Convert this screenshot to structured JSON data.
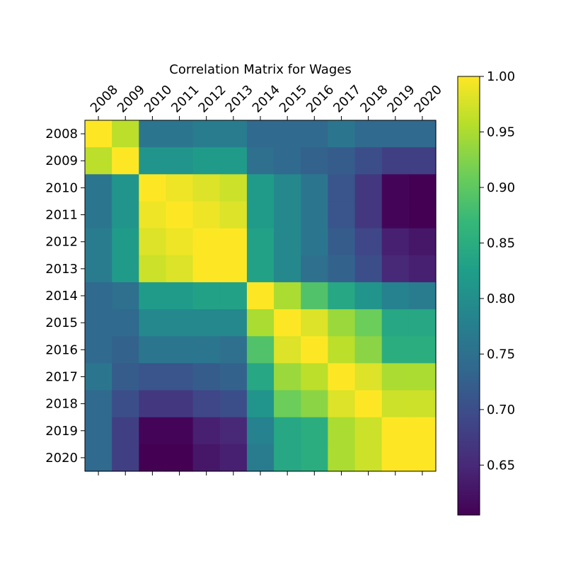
{
  "chart_data": {
    "type": "heatmap",
    "title": "Correlation Matrix for Wages",
    "xlabel": "",
    "ylabel": "",
    "x_categories": [
      "2008",
      "2009",
      "2010",
      "2011",
      "2012",
      "2013",
      "2014",
      "2015",
      "2016",
      "2017",
      "2018",
      "2019",
      "2020"
    ],
    "y_categories": [
      "2008",
      "2009",
      "2010",
      "2011",
      "2012",
      "2013",
      "2014",
      "2015",
      "2016",
      "2017",
      "2018",
      "2019",
      "2020"
    ],
    "values": [
      [
        1.0,
        0.96,
        0.76,
        0.76,
        0.77,
        0.77,
        0.74,
        0.74,
        0.74,
        0.76,
        0.74,
        0.74,
        0.74
      ],
      [
        0.96,
        1.0,
        0.81,
        0.81,
        0.82,
        0.82,
        0.75,
        0.74,
        0.73,
        0.72,
        0.7,
        0.68,
        0.68
      ],
      [
        0.76,
        0.81,
        1.0,
        0.99,
        0.98,
        0.97,
        0.82,
        0.79,
        0.76,
        0.71,
        0.67,
        0.61,
        0.6
      ],
      [
        0.76,
        0.81,
        0.99,
        1.0,
        0.99,
        0.98,
        0.82,
        0.79,
        0.76,
        0.71,
        0.67,
        0.61,
        0.6
      ],
      [
        0.77,
        0.82,
        0.98,
        0.99,
        1.0,
        1.0,
        0.83,
        0.79,
        0.76,
        0.72,
        0.69,
        0.64,
        0.63
      ],
      [
        0.77,
        0.82,
        0.97,
        0.98,
        1.0,
        1.0,
        0.83,
        0.79,
        0.75,
        0.73,
        0.7,
        0.65,
        0.64
      ],
      [
        0.74,
        0.75,
        0.82,
        0.82,
        0.83,
        0.83,
        1.0,
        0.95,
        0.89,
        0.84,
        0.81,
        0.78,
        0.77
      ],
      [
        0.74,
        0.74,
        0.79,
        0.79,
        0.79,
        0.79,
        0.95,
        1.0,
        0.98,
        0.94,
        0.91,
        0.84,
        0.84
      ],
      [
        0.74,
        0.73,
        0.76,
        0.76,
        0.76,
        0.75,
        0.89,
        0.98,
        1.0,
        0.96,
        0.93,
        0.85,
        0.85
      ],
      [
        0.76,
        0.72,
        0.71,
        0.71,
        0.72,
        0.73,
        0.84,
        0.94,
        0.96,
        1.0,
        0.98,
        0.95,
        0.95
      ],
      [
        0.74,
        0.7,
        0.67,
        0.67,
        0.69,
        0.7,
        0.81,
        0.91,
        0.93,
        0.98,
        1.0,
        0.97,
        0.97
      ],
      [
        0.74,
        0.68,
        0.61,
        0.61,
        0.64,
        0.65,
        0.78,
        0.84,
        0.85,
        0.95,
        0.97,
        1.0,
        1.0
      ],
      [
        0.74,
        0.68,
        0.6,
        0.6,
        0.63,
        0.64,
        0.77,
        0.84,
        0.85,
        0.95,
        0.97,
        1.0,
        1.0
      ]
    ],
    "colorscale": "viridis",
    "vmin": 0.605,
    "vmax": 1.0,
    "colorbar_ticks": [
      "0.65",
      "0.70",
      "0.75",
      "0.80",
      "0.85",
      "0.90",
      "0.95",
      "1.00"
    ],
    "x_tick_position": "top",
    "grid": false
  }
}
